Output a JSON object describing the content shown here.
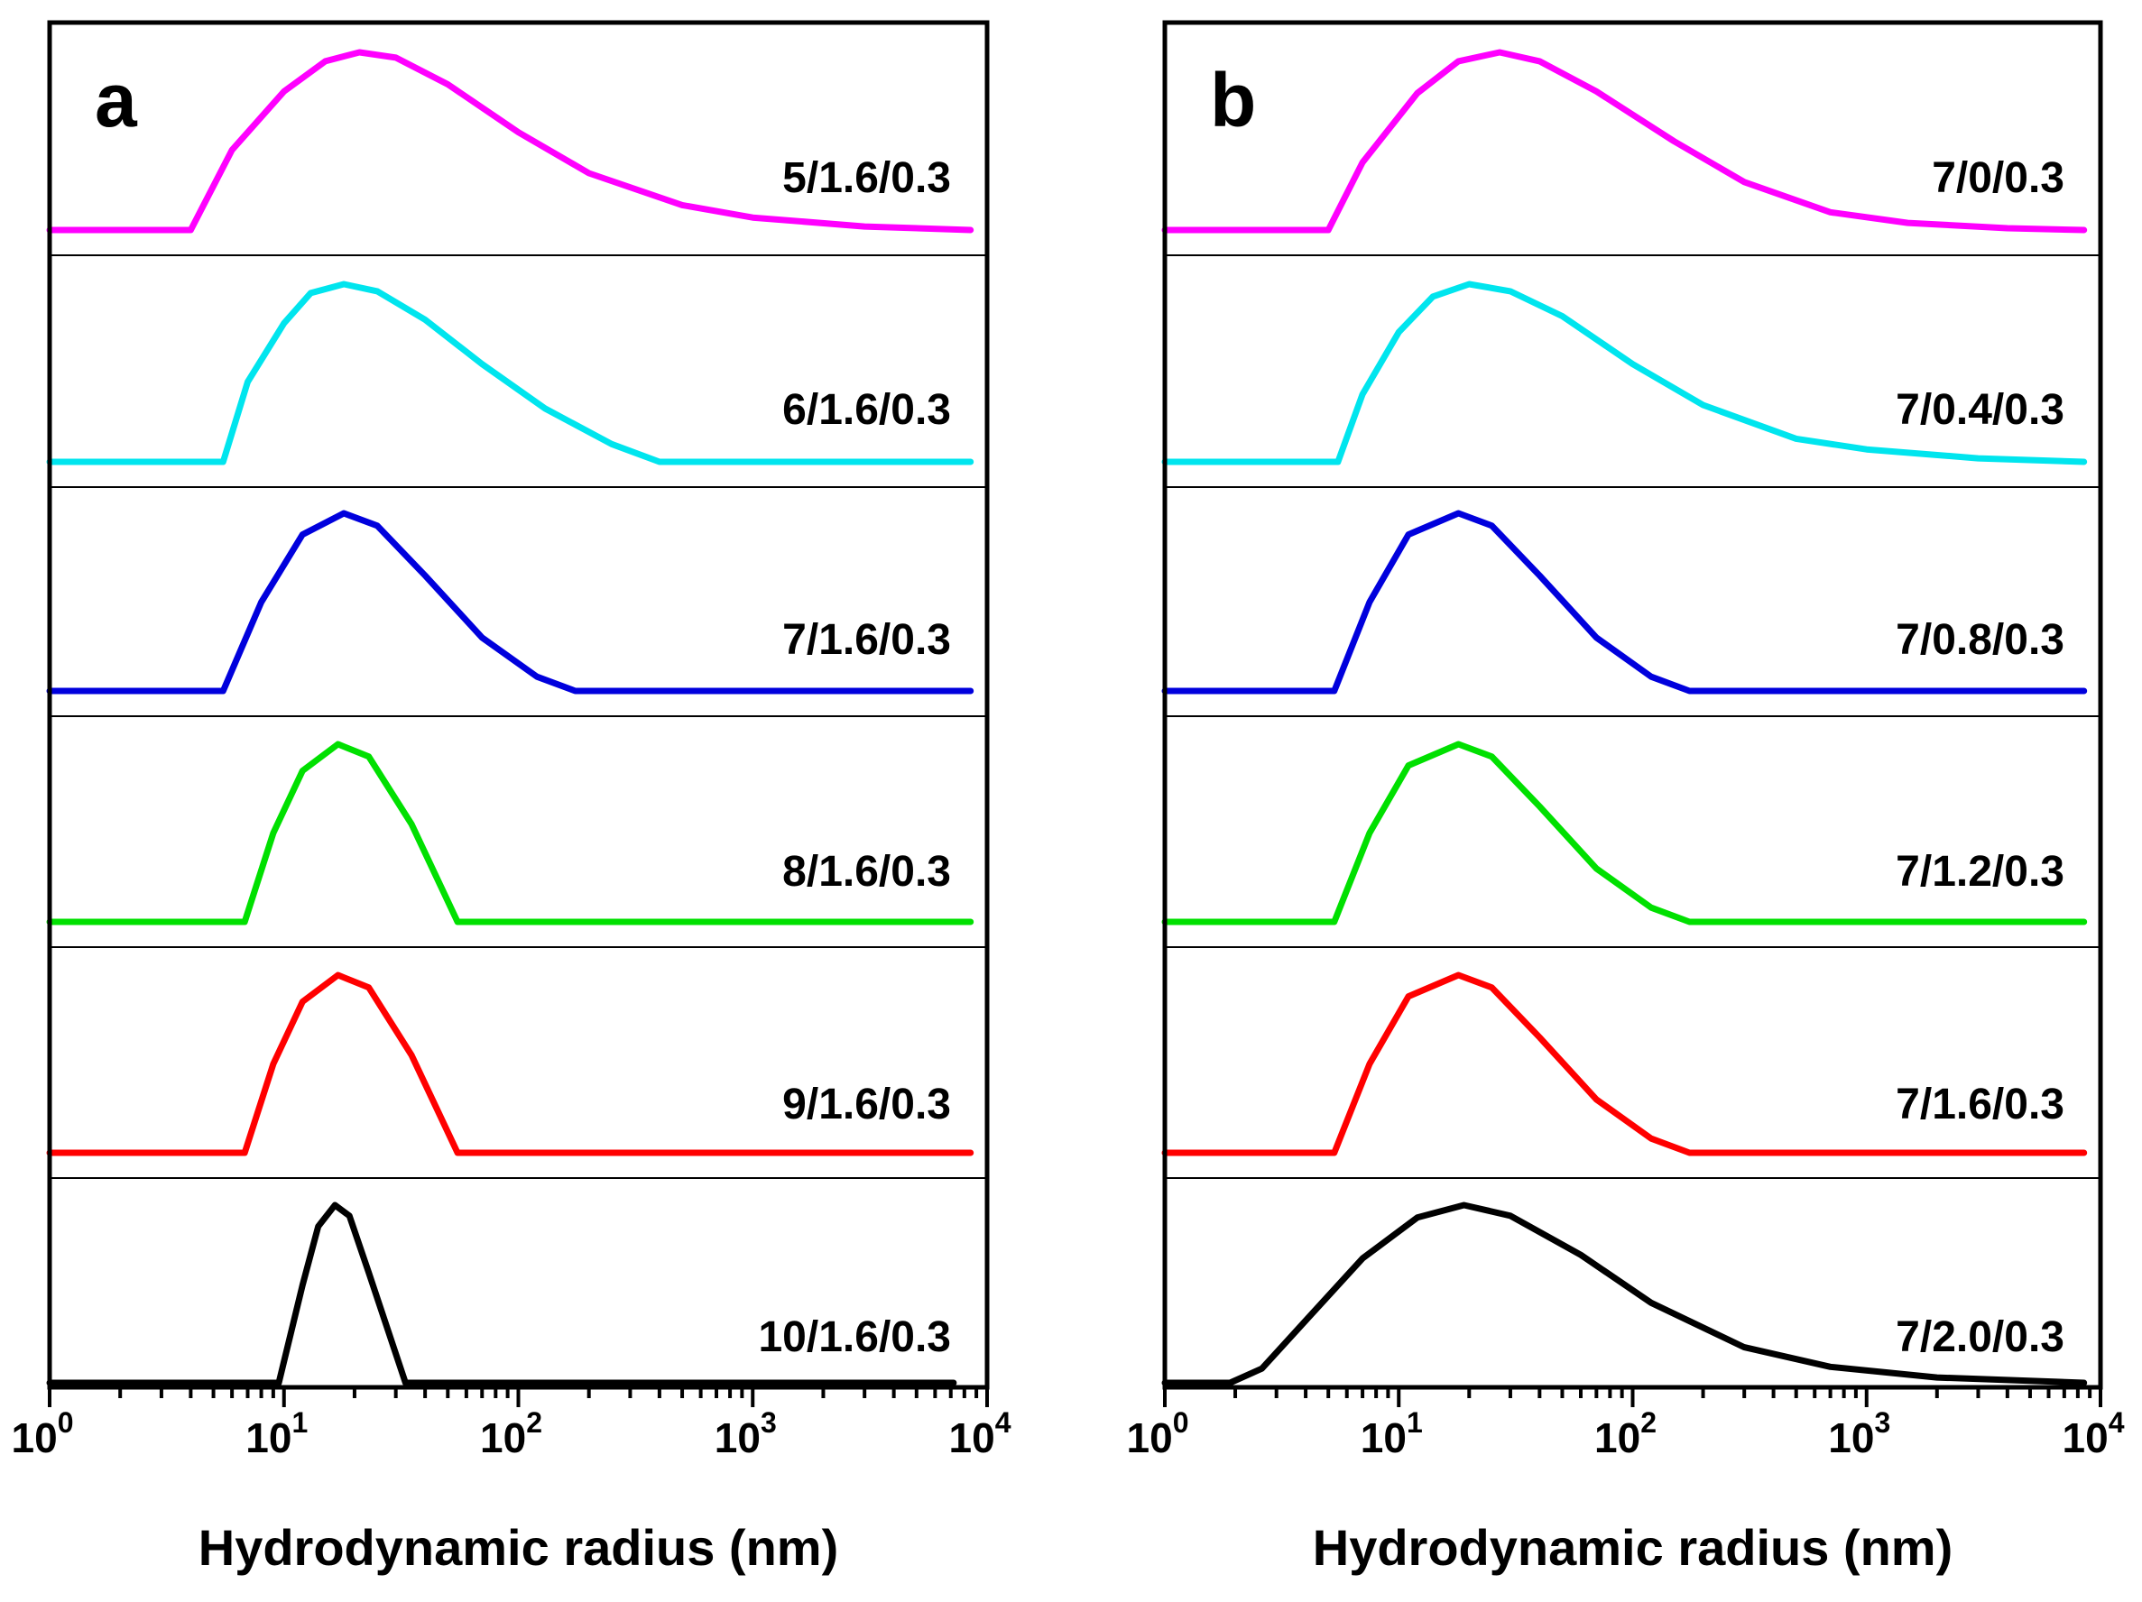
{
  "chart_data": [
    {
      "type": "line",
      "panel_label": "a",
      "xlabel": "Hydrodynamic radius (nm)",
      "xscale": "log",
      "xlim": [
        1,
        10000
      ],
      "x_ticks": [
        {
          "base": "10",
          "exp": "0"
        },
        {
          "base": "10",
          "exp": "1"
        },
        {
          "base": "10",
          "exp": "2"
        },
        {
          "base": "10",
          "exp": "3"
        },
        {
          "base": "10",
          "exp": "4"
        }
      ],
      "stacked": true,
      "series": [
        {
          "name": "5/1.6/0.3",
          "color": "#ff00ff",
          "x": [
            4.0,
            6.0,
            10,
            15,
            21,
            30,
            50,
            100,
            200,
            500,
            1000,
            3000,
            8500
          ],
          "y": [
            0,
            0.45,
            0.78,
            0.95,
            1.0,
            0.97,
            0.82,
            0.55,
            0.32,
            0.14,
            0.07,
            0.02,
            0
          ]
        },
        {
          "name": "6/1.6/0.3",
          "color": "#00e5ee",
          "x": [
            5.5,
            7.0,
            10,
            13,
            18,
            25,
            40,
            70,
            130,
            250,
            400,
            8500
          ],
          "y": [
            0,
            0.45,
            0.78,
            0.95,
            1.0,
            0.96,
            0.8,
            0.55,
            0.3,
            0.1,
            0,
            0
          ]
        },
        {
          "name": "7/1.6/0.3",
          "color": "#0000dd",
          "x": [
            5.5,
            8.0,
            12,
            18,
            25,
            40,
            70,
            120,
            175,
            8500
          ],
          "y": [
            0,
            0.5,
            0.88,
            1.0,
            0.93,
            0.65,
            0.3,
            0.08,
            0,
            0
          ]
        },
        {
          "name": "8/1.6/0.3",
          "color": "#00e000",
          "x": [
            6.8,
            9.0,
            12,
            17,
            23,
            35,
            55,
            8500
          ],
          "y": [
            0,
            0.5,
            0.85,
            1.0,
            0.93,
            0.55,
            0,
            0
          ]
        },
        {
          "name": "9/1.6/0.3",
          "color": "#ff0000",
          "x": [
            6.8,
            9.0,
            12,
            17,
            23,
            35,
            55,
            8500
          ],
          "y": [
            0,
            0.5,
            0.85,
            1.0,
            0.93,
            0.55,
            0,
            0
          ]
        },
        {
          "name": "10/1.6/0.3",
          "color": "#000000",
          "x": [
            9.5,
            12,
            14,
            16.5,
            19,
            23,
            33,
            7200
          ],
          "y": [
            0,
            0.55,
            0.88,
            1.0,
            0.94,
            0.62,
            0,
            0
          ]
        }
      ]
    },
    {
      "type": "line",
      "panel_label": "b",
      "xlabel": "Hydrodynamic radius (nm)",
      "xscale": "log",
      "xlim": [
        1,
        10000
      ],
      "x_ticks": [
        {
          "base": "10",
          "exp": "0"
        },
        {
          "base": "10",
          "exp": "1"
        },
        {
          "base": "10",
          "exp": "2"
        },
        {
          "base": "10",
          "exp": "3"
        },
        {
          "base": "10",
          "exp": "4"
        }
      ],
      "stacked": true,
      "series": [
        {
          "name": "7/0/0.3",
          "color": "#ff00ff",
          "x": [
            5.0,
            7.0,
            12,
            18,
            27,
            40,
            70,
            150,
            300,
            700,
            1500,
            4000,
            8500
          ],
          "y": [
            0,
            0.38,
            0.77,
            0.95,
            1.0,
            0.95,
            0.78,
            0.5,
            0.27,
            0.1,
            0.04,
            0.01,
            0
          ]
        },
        {
          "name": "7/0.4/0.3",
          "color": "#00e5ee",
          "x": [
            5.5,
            7.0,
            10,
            14,
            20,
            30,
            50,
            100,
            200,
            500,
            1000,
            3000,
            8500
          ],
          "y": [
            0,
            0.38,
            0.73,
            0.93,
            1.0,
            0.96,
            0.82,
            0.55,
            0.32,
            0.13,
            0.07,
            0.02,
            0
          ]
        },
        {
          "name": "7/0.8/0.3",
          "color": "#0000dd",
          "x": [
            5.3,
            7.5,
            11,
            18,
            25,
            40,
            70,
            120,
            175,
            8500
          ],
          "y": [
            0,
            0.5,
            0.88,
            1.0,
            0.93,
            0.65,
            0.3,
            0.08,
            0,
            0
          ]
        },
        {
          "name": "7/1.2/0.3",
          "color": "#00e000",
          "x": [
            5.3,
            7.5,
            11,
            18,
            25,
            40,
            70,
            120,
            175,
            8500
          ],
          "y": [
            0,
            0.5,
            0.88,
            1.0,
            0.93,
            0.65,
            0.3,
            0.08,
            0,
            0
          ]
        },
        {
          "name": "7/1.6/0.3",
          "color": "#ff0000",
          "x": [
            5.3,
            7.5,
            11,
            18,
            25,
            40,
            70,
            120,
            175,
            8500
          ],
          "y": [
            0,
            0.5,
            0.88,
            1.0,
            0.93,
            0.65,
            0.3,
            0.08,
            0,
            0
          ]
        },
        {
          "name": "7/2.0/0.3",
          "color": "#000000",
          "x": [
            1.9,
            2.6,
            4.0,
            7.0,
            12,
            19,
            30,
            60,
            120,
            300,
            700,
            2000,
            8500
          ],
          "y": [
            0,
            0.08,
            0.35,
            0.7,
            0.93,
            1.0,
            0.94,
            0.72,
            0.45,
            0.2,
            0.09,
            0.03,
            0
          ]
        }
      ]
    }
  ]
}
